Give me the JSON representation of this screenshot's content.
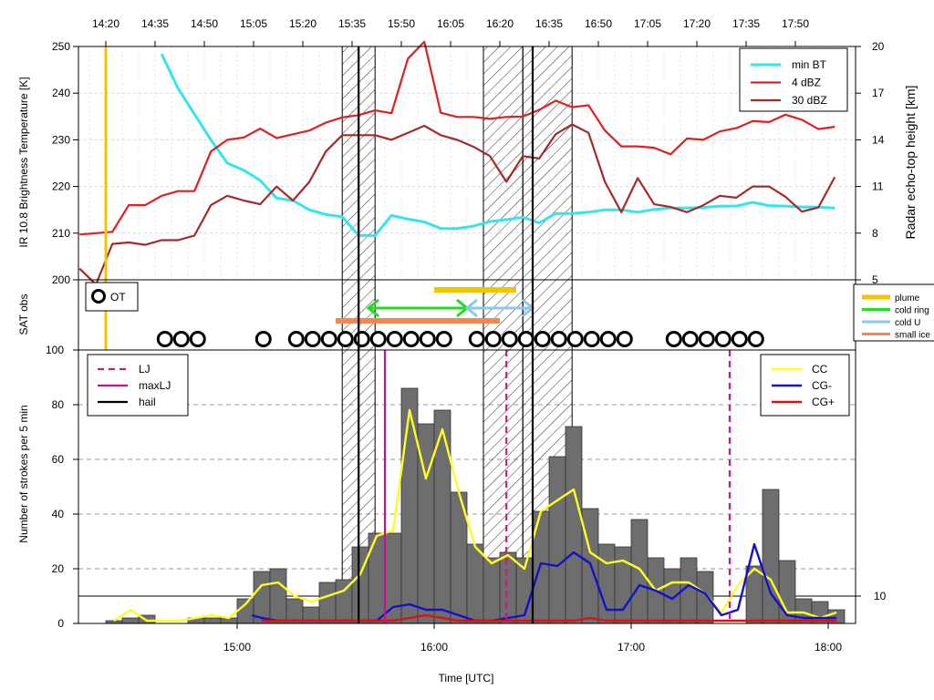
{
  "x_axis": {
    "label": "Time [UTC]",
    "bottom_ticks": [
      "15:00",
      "16:00",
      "17:00",
      "18:00"
    ],
    "top_ticks": [
      "14:20",
      "14:35",
      "14:50",
      "15:05",
      "15:20",
      "15:35",
      "15:50",
      "16:05",
      "16:20",
      "16:35",
      "16:50",
      "17:05",
      "17:20",
      "17:35",
      "17:50"
    ]
  },
  "colors": {
    "min_bt": "#33e6ee",
    "dbz4": "#e02020",
    "dbz30": "#a52a2a",
    "plume": "#f5c400",
    "cold_ring": "#22dd22",
    "cold_u": "#88c8ee",
    "small_ice": "#f08850",
    "cc": "#ffff22",
    "cg_minus": "#1010d0",
    "cg_plus": "#e01010",
    "lj": "#c02080",
    "maxlj": "#c8108c",
    "hail": "#000000",
    "bars": "#6e6e6e",
    "ot_line": "#f5c400"
  },
  "chart_data": [
    {
      "type": "line",
      "panel": "top",
      "ylabel_left": "IR 10.8 Brightness Temperature [K]",
      "ylabel_right": "Radar echo-top height [km]",
      "ylim_left": [
        200,
        250
      ],
      "yticks_left": [
        "200",
        "210",
        "220",
        "230",
        "240",
        "250"
      ],
      "ylim_right": [
        5,
        20
      ],
      "yticks_right": [
        "5",
        "8",
        "11",
        "14",
        "17",
        "20"
      ],
      "legend": {
        "position": "top-right",
        "entries": [
          "min BT",
          "4 dBZ",
          "30 dBZ"
        ]
      },
      "grid": true,
      "series": [
        {
          "name": "min BT",
          "axis": "left",
          "x": [
            "14:37",
            "14:42",
            "14:47",
            "14:52",
            "14:57",
            "15:02",
            "15:07",
            "15:12",
            "15:17",
            "15:22",
            "15:27",
            "15:32",
            "15:37",
            "15:42",
            "15:47",
            "15:52",
            "15:57",
            "16:02",
            "16:07",
            "16:12",
            "16:17",
            "16:22",
            "16:27",
            "16:32",
            "16:37",
            "16:42",
            "16:47",
            "16:52",
            "16:57",
            "17:02",
            "17:07",
            "17:12",
            "17:17",
            "17:22",
            "17:27",
            "17:32",
            "17:37",
            "17:42",
            "17:47",
            "17:52",
            "17:57",
            "18:02"
          ],
          "y": [
            248.4,
            241,
            235.5,
            230,
            225,
            223.5,
            221.3,
            217.5,
            217,
            215,
            214,
            213.5,
            209.5,
            209.5,
            213.8,
            213,
            212.4,
            211,
            211,
            211.5,
            212.5,
            212.9,
            213.4,
            212.2,
            214.2,
            214.2,
            214.5,
            215,
            215,
            214.5,
            215.1,
            215.4,
            215.4,
            215.5,
            215.8,
            215.8,
            216.6,
            215.9,
            215.8,
            215.6,
            215.6,
            215.4
          ]
        },
        {
          "name": "4 dBZ",
          "axis": "left",
          "x": [
            "14:12",
            "14:17",
            "14:22",
            "14:27",
            "14:32",
            "14:37",
            "14:42",
            "14:47",
            "14:52",
            "14:57",
            "15:02",
            "15:07",
            "15:12",
            "15:17",
            "15:22",
            "15:27",
            "15:32",
            "15:37",
            "15:42",
            "15:47",
            "15:52",
            "15:57",
            "16:02",
            "16:07",
            "16:12",
            "16:17",
            "16:22",
            "16:27",
            "16:32",
            "16:37",
            "16:42",
            "16:47",
            "16:52",
            "16:57",
            "17:02",
            "17:07",
            "17:12",
            "17:17",
            "17:22",
            "17:27",
            "17:32",
            "17:37",
            "17:42",
            "17:47",
            "17:52",
            "17:57",
            "18:02"
          ],
          "y": [
            209.7,
            210,
            210.3,
            216,
            216,
            218,
            219,
            219,
            227.5,
            230,
            230.5,
            232.4,
            230.4,
            231.2,
            232,
            233.7,
            234.8,
            235.3,
            236.3,
            235.7,
            247.4,
            251,
            235.8,
            234.9,
            234.9,
            234.5,
            234.9,
            235,
            236.4,
            238.4,
            237,
            237.4,
            232,
            228.6,
            228.6,
            228.3,
            226.9,
            230.3,
            230,
            231.8,
            232.5,
            234,
            233.8,
            235.4,
            234.3,
            232.3,
            232.8
          ]
        },
        {
          "name": "30 dBZ",
          "axis": "left",
          "x": [
            "14:12",
            "14:17",
            "14:22",
            "14:27",
            "14:32",
            "14:37",
            "14:42",
            "14:47",
            "14:52",
            "14:57",
            "15:02",
            "15:07",
            "15:12",
            "15:17",
            "15:22",
            "15:27",
            "15:32",
            "15:37",
            "15:42",
            "15:47",
            "15:52",
            "15:57",
            "16:02",
            "16:07",
            "16:12",
            "16:17",
            "16:22",
            "16:27",
            "16:32",
            "16:37",
            "16:42",
            "16:47",
            "16:52",
            "16:57",
            "17:02",
            "17:07",
            "17:12",
            "17:17",
            "17:22",
            "17:27",
            "17:32",
            "17:37",
            "17:42",
            "17:47",
            "17:52",
            "17:57",
            "18:02"
          ],
          "y": [
            202.4,
            199,
            207.7,
            208,
            207.5,
            208.5,
            208.5,
            209.5,
            216,
            218,
            217,
            216.2,
            220,
            217,
            221,
            227.5,
            231,
            231,
            231,
            230,
            231.5,
            233,
            231,
            230,
            228.5,
            226.5,
            221,
            226.5,
            226,
            231.2,
            233.3,
            231.5,
            221,
            214.5,
            221.8,
            216.2,
            215.6,
            214.5,
            216,
            218,
            217.6,
            220,
            220,
            217.8,
            214.6,
            215.5,
            222
          ]
        }
      ]
    },
    {
      "type": "scatter",
      "panel": "middle",
      "ylabel": "SAT obs",
      "legend_left": [
        "OT"
      ],
      "legend_right": [
        "plume",
        "cold ring",
        "cold U",
        "small ice"
      ],
      "ot_times": [
        "14:38",
        "14:43",
        "14:48",
        "15:08",
        "15:18",
        "15:23",
        "15:28",
        "15:33",
        "15:38",
        "15:43",
        "15:48",
        "15:53",
        "15:58",
        "16:03",
        "16:13",
        "16:18",
        "16:23",
        "16:28",
        "16:33",
        "16:38",
        "16:43",
        "16:48",
        "16:53",
        "16:58",
        "17:13",
        "17:18",
        "17:23",
        "17:28",
        "17:33",
        "17:38"
      ],
      "ot_line_time": "14:20",
      "spans": [
        {
          "name": "plume",
          "start": "16:00",
          "end": "16:25",
          "arrows": false
        },
        {
          "name": "cold ring",
          "start": "15:40",
          "end": "16:10",
          "arrows": true
        },
        {
          "name": "cold U",
          "start": "16:10",
          "end": "16:30",
          "arrows": true
        },
        {
          "name": "small ice",
          "start": "15:30",
          "end": "16:20",
          "arrows": false
        }
      ]
    },
    {
      "type": "bar",
      "panel": "bottom",
      "ylabel": "Number of strokes per 5 min",
      "xlabel": "Time [UTC]",
      "ylim": [
        0,
        100
      ],
      "yticks": [
        "0",
        "20",
        "40",
        "60",
        "80",
        "100"
      ],
      "right_tick": "10",
      "grid": true,
      "legend_left": [
        "LJ",
        "maxLJ",
        "hail"
      ],
      "legend_right": [
        "CC",
        "CG-",
        "CG+"
      ],
      "bar_times": [
        "14:20",
        "14:25",
        "14:30",
        "14:35",
        "14:40",
        "14:45",
        "14:50",
        "14:55",
        "15:00",
        "15:05",
        "15:10",
        "15:15",
        "15:20",
        "15:25",
        "15:30",
        "15:35",
        "15:40",
        "15:45",
        "15:50",
        "15:55",
        "16:00",
        "16:05",
        "16:10",
        "16:15",
        "16:20",
        "16:25",
        "16:30",
        "16:35",
        "16:40",
        "16:45",
        "16:50",
        "16:55",
        "17:00",
        "17:05",
        "17:10",
        "17:15",
        "17:20",
        "17:25",
        "17:30",
        "17:35",
        "17:40",
        "17:45",
        "17:50",
        "17:55",
        "18:00"
      ],
      "bar_values": [
        1,
        2,
        3,
        0,
        0,
        2,
        2,
        2,
        9,
        19,
        20,
        9,
        6,
        15,
        16,
        28,
        33,
        33,
        86,
        73,
        78,
        48,
        29,
        24,
        26,
        24,
        41,
        61,
        72,
        42,
        29,
        28,
        38,
        24,
        20,
        24,
        19,
        0,
        0,
        21,
        49,
        23,
        9,
        8,
        5
      ],
      "series": [
        {
          "name": "CC",
          "x": [
            "14:20",
            "14:25",
            "14:30",
            "14:35",
            "14:40",
            "14:45",
            "14:50",
            "14:55",
            "15:00",
            "15:05",
            "15:10",
            "15:15",
            "15:20",
            "15:25",
            "15:30",
            "15:35",
            "15:40",
            "15:45",
            "15:50",
            "15:55",
            "16:00",
            "16:05",
            "16:10",
            "16:15",
            "16:20",
            "16:25",
            "16:30",
            "16:35",
            "16:40",
            "16:45",
            "16:50",
            "16:55",
            "17:00",
            "17:05",
            "17:10",
            "17:15",
            "17:20",
            "17:25",
            "17:30",
            "17:35",
            "17:40",
            "17:45",
            "17:50",
            "17:55",
            "18:00"
          ],
          "y": [
            1,
            5,
            1,
            1,
            1,
            2,
            3,
            2,
            7,
            14,
            15,
            10,
            8,
            10,
            12,
            18,
            32,
            34,
            78,
            53,
            71,
            48,
            28,
            22,
            25,
            20,
            41,
            45,
            49,
            26,
            22,
            23,
            20,
            12,
            15,
            15,
            11,
            4,
            14,
            20,
            16,
            4,
            4,
            2,
            4
          ]
        },
        {
          "name": "CG-",
          "x": [
            "15:02",
            "15:05",
            "15:10",
            "15:15",
            "15:20",
            "15:25",
            "15:30",
            "15:35",
            "15:40",
            "15:45",
            "15:50",
            "15:55",
            "16:00",
            "16:05",
            "16:10",
            "16:15",
            "16:20",
            "16:25",
            "16:30",
            "16:35",
            "16:40",
            "16:45",
            "16:50",
            "16:55",
            "17:00",
            "17:05",
            "17:10",
            "17:15",
            "17:20",
            "17:25",
            "17:30",
            "17:35",
            "17:40",
            "17:45",
            "17:50",
            "17:55",
            "18:00"
          ],
          "y": [
            3,
            2,
            1,
            1,
            1,
            1,
            1,
            1,
            1,
            6,
            7,
            5,
            5,
            3,
            1,
            1,
            2,
            3,
            22,
            21,
            26,
            22,
            5,
            5,
            14,
            12,
            9,
            14,
            11,
            3,
            5,
            29,
            11,
            3,
            2,
            2,
            2
          ]
        },
        {
          "name": "CG+",
          "x": [
            "15:05",
            "15:10",
            "15:15",
            "15:20",
            "15:25",
            "15:30",
            "15:35",
            "15:40",
            "15:45",
            "15:50",
            "15:55",
            "16:00",
            "16:05",
            "16:10",
            "16:15",
            "16:20",
            "16:25",
            "16:30",
            "16:35",
            "16:40",
            "16:45",
            "16:50",
            "16:55",
            "17:00",
            "17:05",
            "17:10",
            "17:15",
            "17:20",
            "17:25",
            "17:30",
            "17:35",
            "17:40",
            "17:45",
            "17:50",
            "17:55",
            "18:00"
          ],
          "y": [
            1,
            1,
            1,
            1,
            1,
            1,
            1,
            1,
            1,
            2,
            3,
            2,
            1,
            1,
            1,
            1,
            1,
            1,
            1,
            1,
            2,
            1,
            1,
            1,
            1,
            1,
            1,
            1,
            1,
            1,
            1,
            1,
            1,
            1,
            1,
            1
          ]
        }
      ],
      "lj_times": [
        "16:22",
        "17:30"
      ],
      "maxlj_time": "15:45",
      "hail_times": [
        "15:37",
        "16:30"
      ],
      "shaded_periods": [
        [
          "15:32",
          "15:42"
        ],
        [
          "16:15",
          "16:27"
        ],
        [
          "16:27",
          "16:42"
        ]
      ],
      "right_tick_value": 10
    }
  ]
}
